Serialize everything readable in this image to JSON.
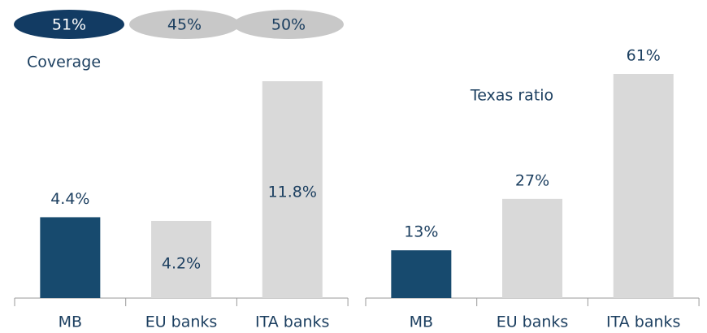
{
  "chart_data": [
    {
      "type": "oval",
      "title": "Coverage",
      "categories": [
        "MB",
        "EU banks",
        "ITA banks"
      ],
      "values": [
        51,
        45,
        50
      ],
      "value_labels": [
        "51%",
        "45%",
        "50%"
      ],
      "colors": [
        "#123b63",
        "#c8c8c8",
        "#c8c8c8"
      ]
    },
    {
      "type": "bar",
      "categories": [
        "MB",
        "EU banks",
        "ITA banks"
      ],
      "values": [
        4.4,
        4.2,
        11.8
      ],
      "value_labels": [
        "4.4%",
        "4.2%",
        "11.8%"
      ],
      "colors": [
        "#174a6e",
        "#d9d9d9",
        "#d9d9d9"
      ]
    },
    {
      "type": "bar",
      "title": "Texas ratio",
      "categories": [
        "MB",
        "EU banks",
        "ITA banks"
      ],
      "values": [
        13,
        27,
        61
      ],
      "value_labels": [
        "13%",
        "27%",
        "61%"
      ],
      "colors": [
        "#174a6e",
        "#d9d9d9",
        "#d9d9d9"
      ]
    }
  ]
}
